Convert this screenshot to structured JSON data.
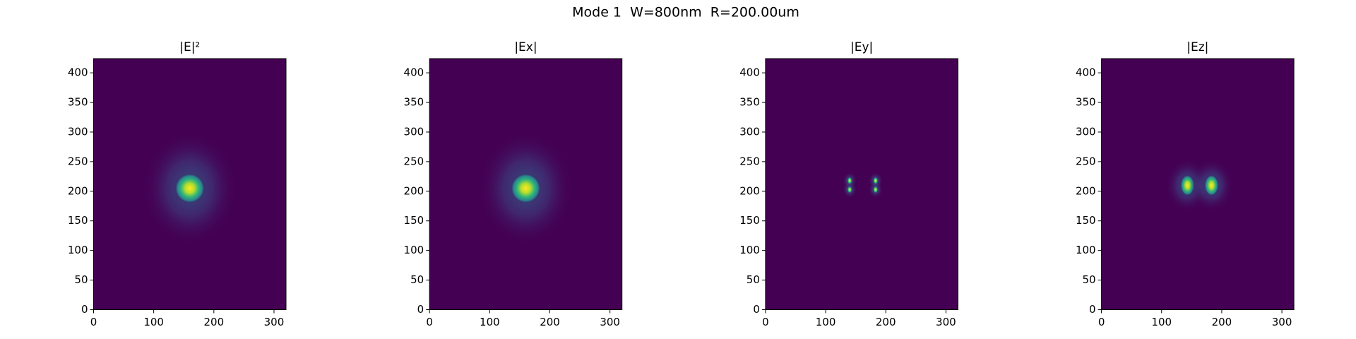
{
  "chart_data": [
    {
      "type": "heatmap",
      "suptitle": "Mode 1  W=800nm  R=200.00um",
      "title": "|E|²",
      "colormap": "viridis",
      "xlim": [
        0,
        320
      ],
      "ylim": [
        0,
        424
      ],
      "xticks": [
        0,
        100,
        200,
        300
      ],
      "yticks": [
        0,
        50,
        100,
        150,
        200,
        250,
        300,
        350,
        400
      ],
      "peaks": {
        "x": [
          160
        ],
        "y": [
          205
        ]
      }
    },
    {
      "type": "heatmap",
      "title": "|Ex|",
      "colormap": "viridis",
      "xlim": [
        0,
        320
      ],
      "ylim": [
        0,
        424
      ],
      "xticks": [
        0,
        100,
        200,
        300
      ],
      "yticks": [
        0,
        50,
        100,
        150,
        200,
        250,
        300,
        350,
        400
      ],
      "peaks": {
        "x": [
          160
        ],
        "y": [
          205
        ]
      }
    },
    {
      "type": "heatmap",
      "title": "|Ey|",
      "colormap": "viridis",
      "xlim": [
        0,
        320
      ],
      "ylim": [
        0,
        424
      ],
      "xticks": [
        0,
        100,
        200,
        300
      ],
      "yticks": [
        0,
        50,
        100,
        150,
        200,
        250,
        300,
        350,
        400
      ],
      "peaks": {
        "x": [
          140,
          183,
          140,
          183
        ],
        "y": [
          203,
          203,
          218,
          218
        ]
      }
    },
    {
      "type": "heatmap",
      "title": "|Ez|",
      "colormap": "viridis",
      "xlim": [
        0,
        320
      ],
      "ylim": [
        0,
        424
      ],
      "xticks": [
        0,
        100,
        200,
        300
      ],
      "yticks": [
        0,
        50,
        100,
        150,
        200,
        250,
        300,
        350,
        400
      ],
      "peaks": {
        "x": [
          143,
          183
        ],
        "y": [
          210,
          210
        ]
      }
    }
  ]
}
